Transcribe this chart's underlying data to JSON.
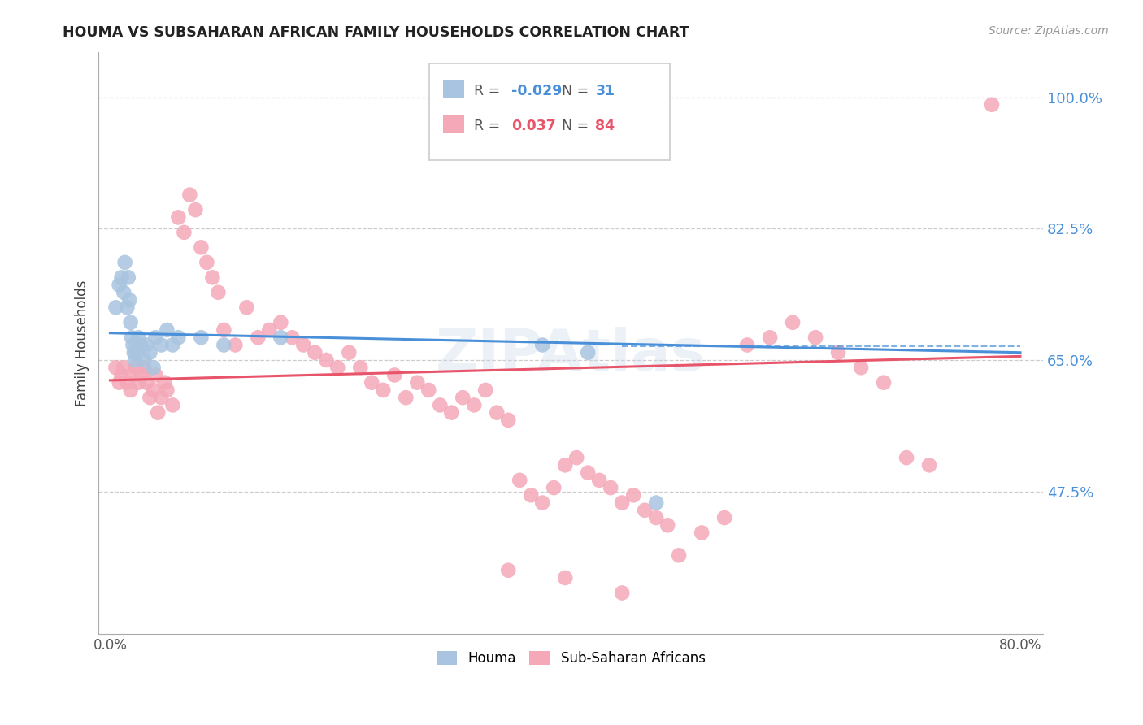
{
  "title": "HOUMA VS SUBSAHARAN AFRICAN FAMILY HOUSEHOLDS CORRELATION CHART",
  "source": "Source: ZipAtlas.com",
  "ylabel": "Family Households",
  "ytick_vals": [
    0.475,
    0.65,
    0.825,
    1.0
  ],
  "ytick_labels": [
    "47.5%",
    "65.0%",
    "82.5%",
    "100.0%"
  ],
  "xmin": 0.0,
  "xmax": 0.8,
  "ymin": 0.285,
  "ymax": 1.06,
  "houma_color": "#a8c4e0",
  "subsaharan_color": "#f4a8b8",
  "trend_houma_color": "#4a90d9",
  "trend_subsaharan_color": "#e8546a",
  "houma_R": "-0.029",
  "houma_N": "31",
  "subsaharan_R": "0.037",
  "subsaharan_N": "84",
  "watermark": "ZIPAtlas",
  "houma_x": [
    0.005,
    0.008,
    0.01,
    0.012,
    0.013,
    0.015,
    0.016,
    0.017,
    0.018,
    0.019,
    0.02,
    0.021,
    0.022,
    0.023,
    0.025,
    0.027,
    0.03,
    0.032,
    0.035,
    0.038,
    0.04,
    0.045,
    0.05,
    0.055,
    0.06,
    0.08,
    0.1,
    0.15,
    0.38,
    0.42,
    0.48
  ],
  "houma_y": [
    0.72,
    0.75,
    0.76,
    0.74,
    0.78,
    0.72,
    0.76,
    0.73,
    0.7,
    0.68,
    0.67,
    0.66,
    0.65,
    0.66,
    0.68,
    0.67,
    0.65,
    0.67,
    0.66,
    0.64,
    0.68,
    0.67,
    0.69,
    0.67,
    0.68,
    0.68,
    0.67,
    0.68,
    0.67,
    0.66,
    0.46
  ],
  "subsaharan_x": [
    0.005,
    0.008,
    0.01,
    0.012,
    0.015,
    0.018,
    0.02,
    0.022,
    0.025,
    0.028,
    0.03,
    0.032,
    0.035,
    0.038,
    0.04,
    0.042,
    0.045,
    0.048,
    0.05,
    0.055,
    0.06,
    0.065,
    0.07,
    0.075,
    0.08,
    0.085,
    0.09,
    0.095,
    0.1,
    0.11,
    0.12,
    0.13,
    0.14,
    0.15,
    0.16,
    0.17,
    0.18,
    0.19,
    0.2,
    0.21,
    0.22,
    0.23,
    0.24,
    0.25,
    0.26,
    0.27,
    0.28,
    0.29,
    0.3,
    0.31,
    0.32,
    0.33,
    0.34,
    0.35,
    0.36,
    0.37,
    0.38,
    0.39,
    0.4,
    0.41,
    0.42,
    0.43,
    0.44,
    0.45,
    0.46,
    0.47,
    0.48,
    0.49,
    0.5,
    0.52,
    0.54,
    0.56,
    0.58,
    0.6,
    0.62,
    0.64,
    0.66,
    0.68,
    0.7,
    0.72,
    0.35,
    0.4,
    0.45,
    0.775
  ],
  "subsaharan_y": [
    0.64,
    0.62,
    0.63,
    0.64,
    0.62,
    0.61,
    0.63,
    0.64,
    0.62,
    0.63,
    0.64,
    0.62,
    0.6,
    0.61,
    0.63,
    0.58,
    0.6,
    0.62,
    0.61,
    0.59,
    0.84,
    0.82,
    0.87,
    0.85,
    0.8,
    0.78,
    0.76,
    0.74,
    0.69,
    0.67,
    0.72,
    0.68,
    0.69,
    0.7,
    0.68,
    0.67,
    0.66,
    0.65,
    0.64,
    0.66,
    0.64,
    0.62,
    0.61,
    0.63,
    0.6,
    0.62,
    0.61,
    0.59,
    0.58,
    0.6,
    0.59,
    0.61,
    0.58,
    0.57,
    0.49,
    0.47,
    0.46,
    0.48,
    0.51,
    0.52,
    0.5,
    0.49,
    0.48,
    0.46,
    0.47,
    0.45,
    0.44,
    0.43,
    0.39,
    0.42,
    0.44,
    0.67,
    0.68,
    0.7,
    0.68,
    0.66,
    0.64,
    0.62,
    0.52,
    0.51,
    0.37,
    0.36,
    0.34,
    0.99
  ]
}
